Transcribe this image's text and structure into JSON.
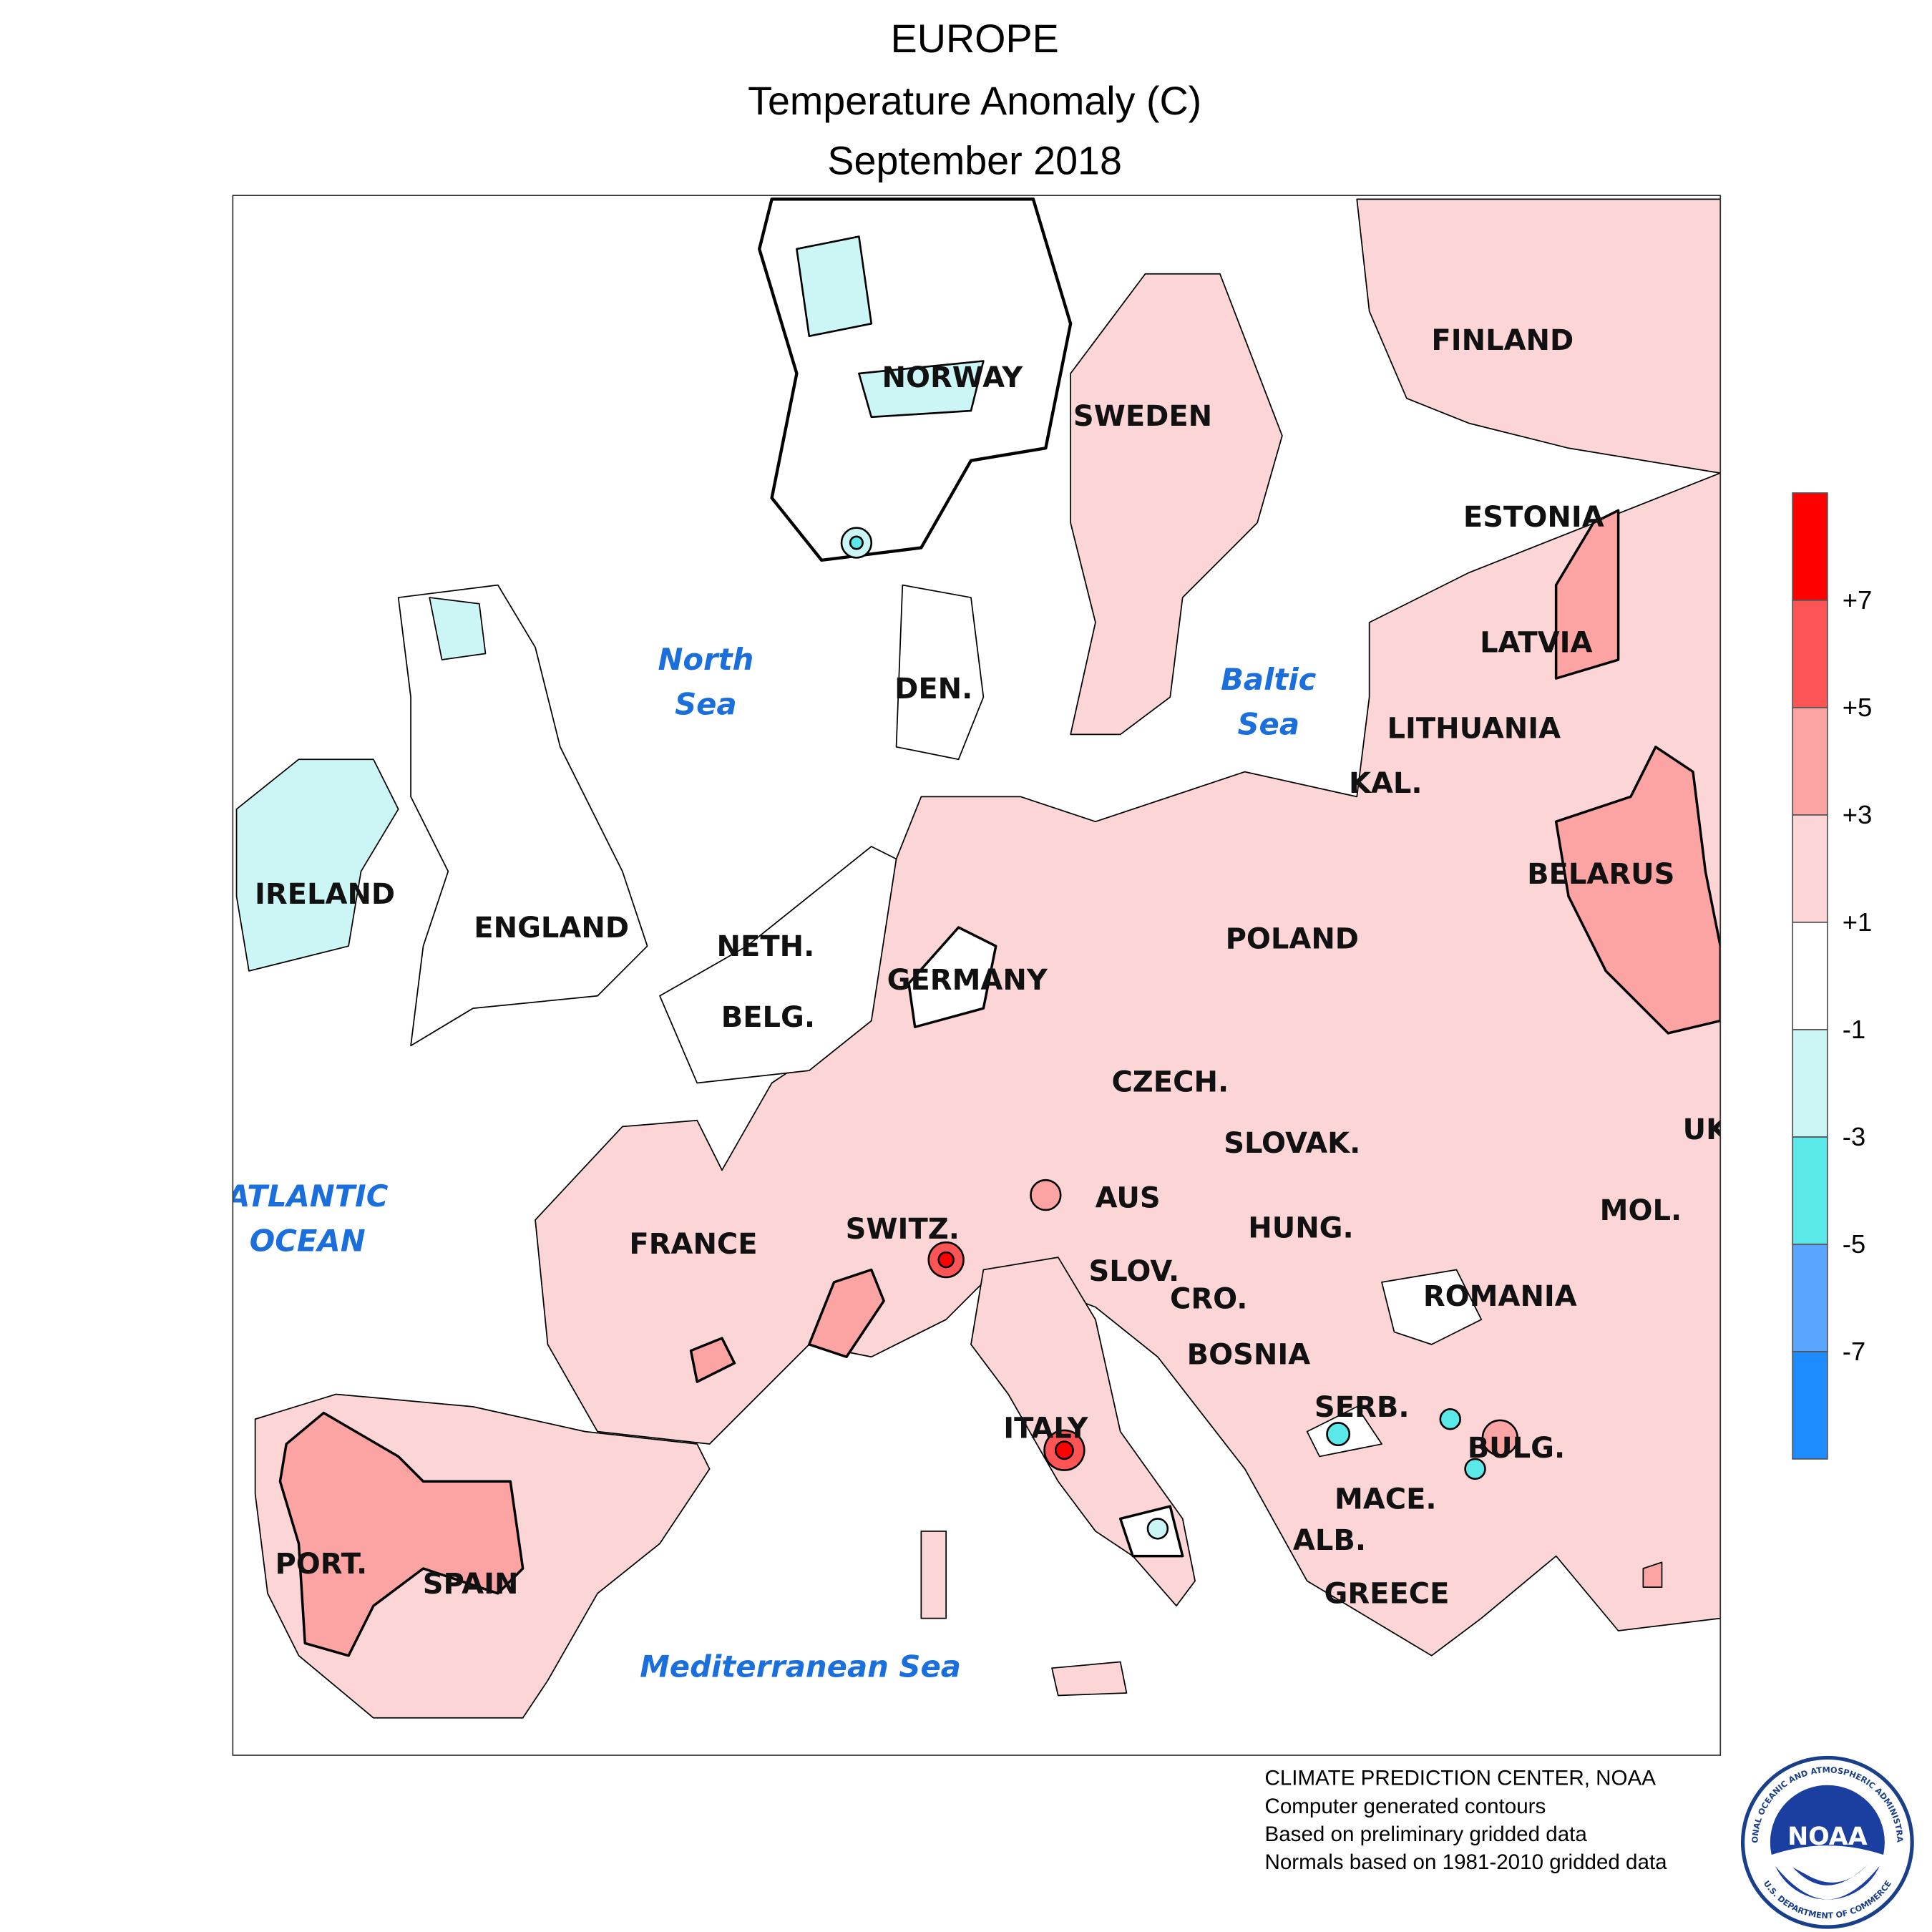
{
  "header": {
    "title": "EUROPE",
    "subtitle": "Temperature Anomaly (C)",
    "period": "September 2018"
  },
  "map": {
    "region_labels": [
      "NORWAY",
      "SWEDEN",
      "FINLAND",
      "ESTONIA",
      "LATVIA",
      "LITHUANIA",
      "KAL.",
      "BELARUS",
      "POLAND",
      "DEN.",
      "NETH.",
      "BELG.",
      "GERMANY",
      "CZECH.",
      "SLOVAK.",
      "AUS",
      "HUNG.",
      "SWITZ.",
      "FRANCE",
      "SLOV.",
      "CRO.",
      "ROMANIA",
      "MOL.",
      "UK",
      "BOSNIA",
      "SERB.",
      "BULG.",
      "ITALY",
      "MACE.",
      "ALB.",
      "GREECE",
      "PORT.",
      "SPAIN",
      "IRELAND",
      "ENGLAND"
    ],
    "sea_labels": [
      [
        "North",
        "Sea"
      ],
      [
        "Baltic",
        "Sea"
      ],
      [
        "ATLANTIC",
        "OCEAN"
      ],
      [
        "Mediterranean Sea"
      ]
    ]
  },
  "legend": {
    "colors": [
      "#ff0000",
      "#fd5555",
      "#fca3a3",
      "#fcd6d6",
      "#ffffff",
      "#ccf6f6",
      "#5ae8e8",
      "#5aa5ff",
      "#1e8cff"
    ],
    "labels": [
      "+7",
      "+5",
      "+3",
      "+1",
      "-1",
      "-3",
      "-5",
      "-7"
    ]
  },
  "footer": {
    "lines": [
      "CLIMATE PREDICTION CENTER, NOAA",
      "Computer generated contours",
      "Based on preliminary gridded data",
      "Normals based on 1981-2010 gridded data"
    ]
  },
  "logo": {
    "label": "NOAA",
    "top_text": "NATIONAL OCEANIC AND ATMOSPHERIC ADMINISTRATION",
    "bottom_text": "U.S. DEPARTMENT OF COMMERCE"
  }
}
